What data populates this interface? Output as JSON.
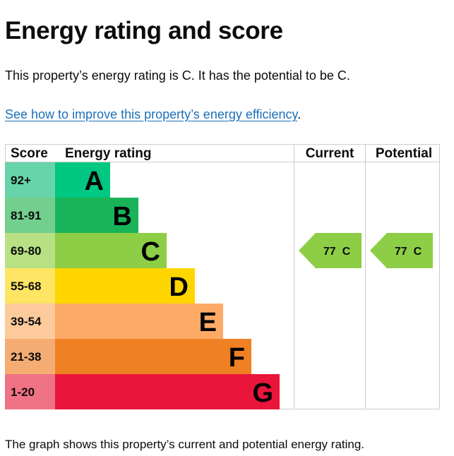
{
  "page": {
    "title": "Energy rating and score",
    "intro": "This property’s energy rating is C. It has the potential to be C.",
    "improve_link": "See how to improve this property’s energy efficiency",
    "improve_link_suffix": ".",
    "footer": "The graph shows this property’s current and potential energy rating."
  },
  "table": {
    "headers": {
      "score": "Score",
      "rating": "Energy rating",
      "current": "Current",
      "potential": "Potential"
    }
  },
  "bands": [
    {
      "score": "92+",
      "letter": "A",
      "color": "#00c781",
      "score_bg": "#67d4a9"
    },
    {
      "score": "81-91",
      "letter": "B",
      "color": "#19b459",
      "score_bg": "#72cf8e"
    },
    {
      "score": "69-80",
      "letter": "C",
      "color": "#8dce46",
      "score_bg": "#b7e183"
    },
    {
      "score": "55-68",
      "letter": "D",
      "color": "#ffd500",
      "score_bg": "#ffe564"
    },
    {
      "score": "39-54",
      "letter": "E",
      "color": "#fcaa65",
      "score_bg": "#fdca9b"
    },
    {
      "score": "21-38",
      "letter": "F",
      "color": "#ef8023",
      "score_bg": "#f5ac72"
    },
    {
      "score": "1-20",
      "letter": "G",
      "color": "#e9153b",
      "score_bg": "#f07285"
    }
  ],
  "current": {
    "value": 77,
    "letter": "C",
    "label": "77  C",
    "color": "#8dce46"
  },
  "potential": {
    "value": 77,
    "letter": "C",
    "label": "77  C",
    "color": "#8dce46"
  }
}
